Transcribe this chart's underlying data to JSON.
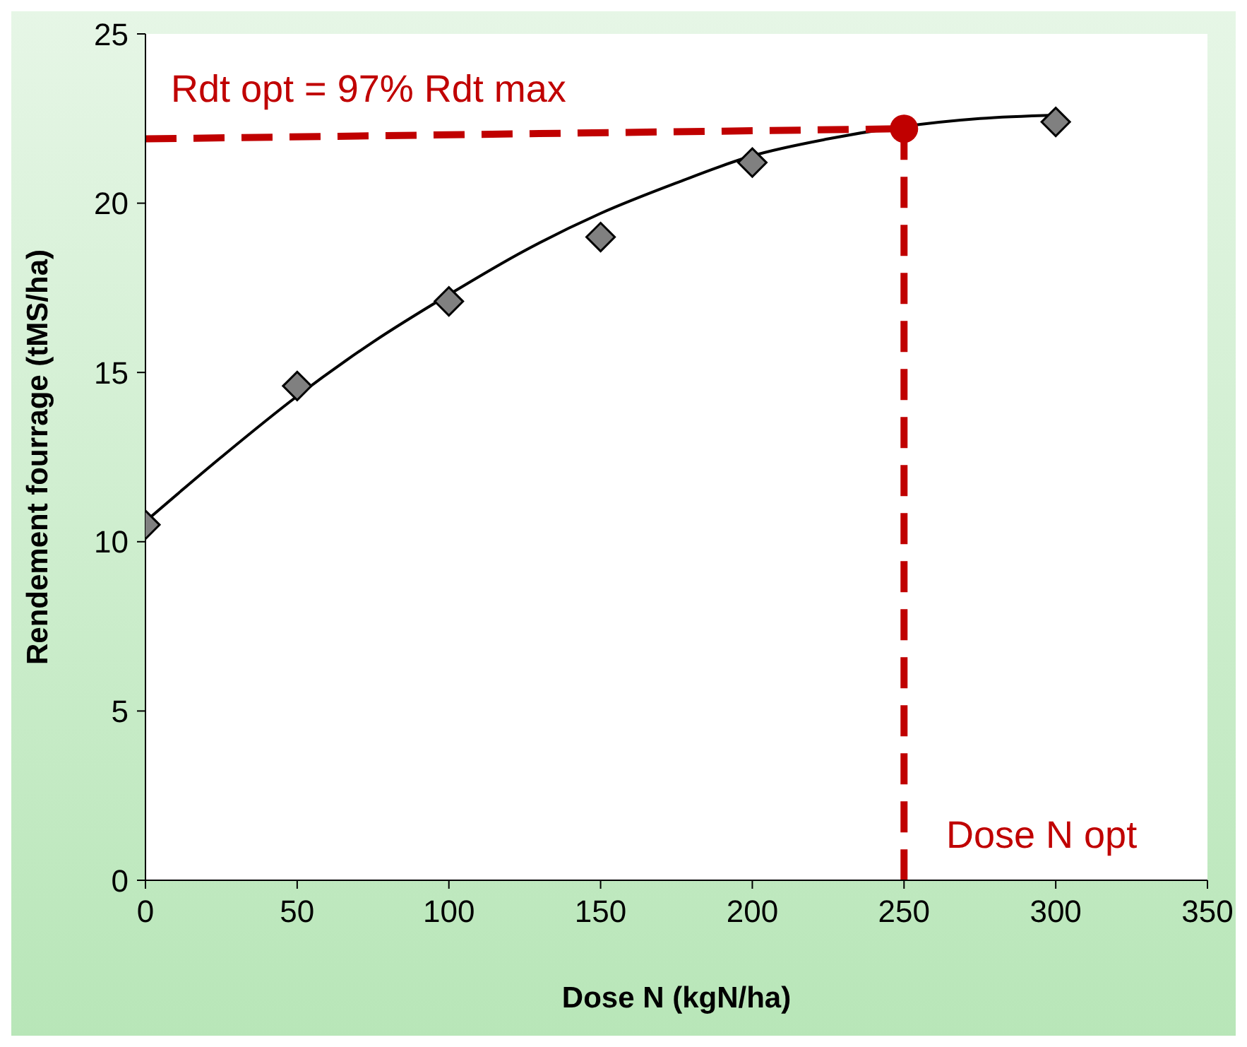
{
  "chart_data": {
    "type": "scatter",
    "xlabel": "Dose N (kgN/ha)",
    "ylabel": "Rendement fourrage (tMS/ha)",
    "xlim": [
      0,
      350
    ],
    "xticks": [
      0,
      50,
      100,
      150,
      200,
      250,
      300,
      350
    ],
    "ylim": [
      0,
      25
    ],
    "yticks": [
      0,
      5,
      10,
      15,
      20,
      25
    ],
    "grid": false,
    "legend": false,
    "series": [
      {
        "type": "line",
        "color": "#000000",
        "marker": "none",
        "line_style": "solid",
        "x": [
          0,
          25,
          50,
          75,
          100,
          125,
          150,
          175,
          200,
          225,
          275,
          300
        ],
        "values": [
          10.6,
          12.5,
          14.3,
          15.9,
          17.3,
          18.6,
          19.7,
          20.6,
          21.4,
          21.9,
          22.5,
          22.6
        ]
      },
      {
        "type": "line",
        "color": "#c00000",
        "marker": "none",
        "line_style": "dashed",
        "x": [
          0,
          250
        ],
        "values": [
          21.9,
          22.2
        ]
      },
      {
        "type": "line",
        "color": "#c00000",
        "marker": "none",
        "line_style": "dashed",
        "x": [
          250,
          250
        ],
        "values": [
          22.2,
          0
        ]
      },
      {
        "color": "#808080",
        "marker": "diamond",
        "x": [
          0,
          50,
          100,
          150,
          200,
          300
        ],
        "values": [
          10.5,
          14.6,
          17.1,
          19.0,
          21.2,
          22.4
        ]
      },
      {
        "type": "scatter",
        "color": "#c00000",
        "marker": "circle",
        "x": [
          250
        ],
        "values": [
          22.2
        ]
      }
    ],
    "annotations": [
      "Rdt opt = 97% Rdt max",
      "Dose N opt"
    ]
  }
}
